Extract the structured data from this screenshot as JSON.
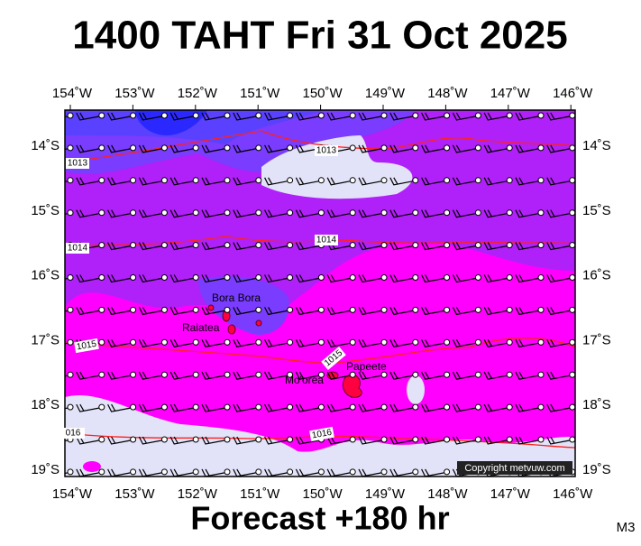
{
  "header": {
    "title": "1400 TAHT Fri 31 Oct 2025"
  },
  "footer": {
    "forecast": "Forecast +180 hr",
    "model": "M3"
  },
  "map": {
    "lon_labels": [
      "154˚W",
      "153˚W",
      "152˚W",
      "151˚W",
      "150˚W",
      "149˚W",
      "148˚W",
      "147˚W",
      "146˚W"
    ],
    "lat_labels": [
      "14˚S",
      "15˚S",
      "16˚S",
      "17˚S",
      "18˚S",
      "19˚S"
    ],
    "places": [
      "Bora Bora",
      "Raiatea",
      "Mo'orea",
      "Papeete"
    ],
    "isobar_labels": [
      "1013",
      "1013",
      "1014",
      "1014",
      "1015",
      "1015",
      "016",
      "1016"
    ],
    "copyright": "Copyright metvuw.com"
  }
}
